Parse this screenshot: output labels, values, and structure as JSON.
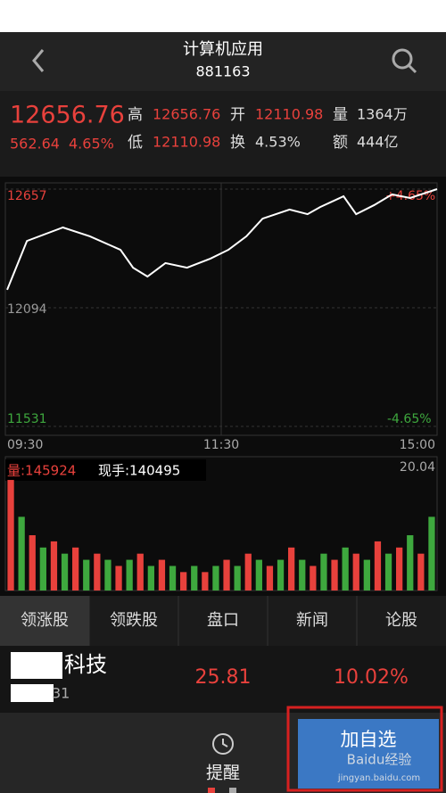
{
  "header": {
    "title": "计算机应用",
    "code": "881163"
  },
  "quote": {
    "price": "12656.76",
    "change": "562.64",
    "change_pct": "4.65%",
    "high_label": "高",
    "high": "12656.76",
    "open_label": "开",
    "open": "12110.98",
    "volume_label": "量",
    "volume": "1364万",
    "low_label": "低",
    "low": "12110.98",
    "turnover_label": "换",
    "turnover": "4.53%",
    "amount_label": "额",
    "amount": "444亿"
  },
  "price_chart": {
    "type": "line",
    "color": "#ffffff",
    "x": [
      1,
      12,
      32,
      47,
      64,
      71,
      79,
      89,
      101,
      114,
      124,
      134,
      143,
      158,
      168,
      175,
      188,
      195,
      205,
      215,
      225,
      240
    ],
    "values": [
      12179,
      12411,
      12475,
      12433,
      12369,
      12284,
      12242,
      12306,
      12284,
      12327,
      12369,
      12433,
      12517,
      12560,
      12538,
      12572,
      12623,
      12538,
      12581,
      12632,
      12615,
      12657
    ],
    "ylim": [
      11531,
      12657
    ],
    "yticks": [
      11531,
      12094,
      12657
    ],
    "xlim": [
      0,
      240
    ],
    "xticks": [
      {
        "value": 0,
        "label": "09:30"
      },
      {
        "value": 120,
        "label": "11:30"
      },
      {
        "value": 240,
        "label": "15:00"
      }
    ],
    "upper_pct": "+4.65%",
    "lower_pct": "-4.65%"
  },
  "volume_chart": {
    "type": "bar",
    "ylim": [
      0,
      20.04
    ],
    "yticks": [
      20.04
    ],
    "volume_text": "量:145924",
    "hand_text": "现手:140495",
    "series": [
      {
        "color": "#e8413c",
        "values": [
          18,
          null,
          9,
          null,
          8,
          null,
          7,
          null,
          6,
          null,
          4,
          null,
          6,
          null,
          5,
          null,
          3,
          null,
          3,
          null,
          5,
          null,
          6,
          null,
          4,
          null,
          7,
          null,
          4,
          null,
          5,
          null,
          6,
          null,
          8,
          null,
          7,
          null,
          6,
          null
        ]
      },
      {
        "color": "#3ea83e",
        "values": [
          null,
          12,
          null,
          7,
          null,
          6,
          null,
          5,
          null,
          5,
          null,
          5,
          null,
          4,
          null,
          4,
          null,
          4,
          null,
          4,
          null,
          4,
          null,
          5,
          null,
          5,
          null,
          5,
          null,
          6,
          null,
          7,
          null,
          5,
          null,
          6,
          null,
          9,
          null,
          12
        ]
      }
    ]
  },
  "tabs": [
    "领涨股",
    "领跌股",
    "盘口",
    "新闻",
    "论股"
  ],
  "stock_row": {
    "name": "科技",
    "code": "31",
    "price": "25.81",
    "change_pct": "10.02%"
  },
  "bottom_bar": {
    "alert": "提醒",
    "add": "加自选",
    "watermark": "Baidu经验",
    "watermark_url": "jingyan.baidu.com"
  }
}
